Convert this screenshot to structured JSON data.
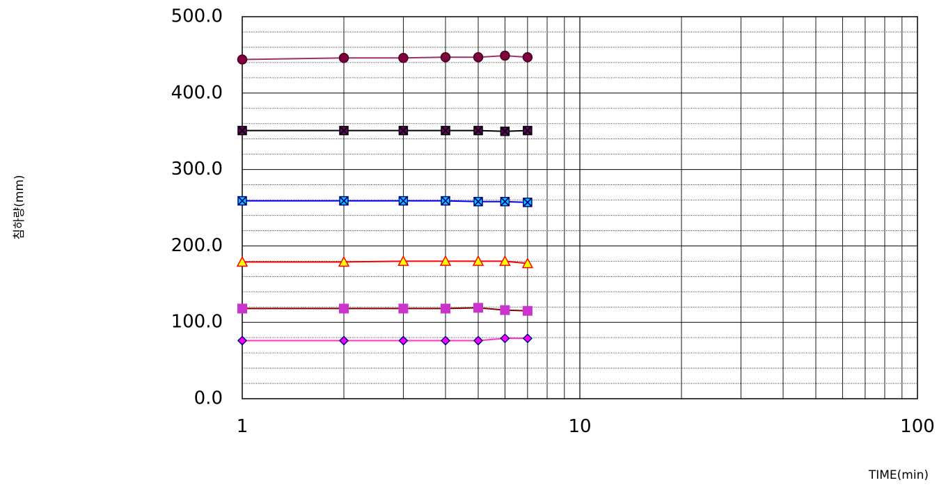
{
  "chart_data": {
    "type": "line",
    "title": "",
    "xlabel": "TIME(min)",
    "ylabel": "침하량(mm)",
    "xscale": "log",
    "xlim": [
      1,
      100
    ],
    "ylim": [
      0,
      500
    ],
    "x_ticks": [
      "1",
      "10",
      "100"
    ],
    "y_ticks": [
      "0.0",
      "100.0",
      "200.0",
      "300.0",
      "400.0",
      "500.0"
    ],
    "grid": true,
    "legend": "none",
    "x": [
      1,
      2,
      3,
      4,
      5,
      6,
      7
    ],
    "series": [
      {
        "marker": "diamond",
        "line_color": "#ff33cc",
        "marker_fill": "#ff00ff",
        "marker_edge": "#000080",
        "values": [
          76,
          76,
          76,
          76,
          76,
          79,
          79
        ]
      },
      {
        "marker": "square",
        "line_color": "#800000",
        "marker_fill": "#cc33cc",
        "marker_edge": "#cc33cc",
        "values": [
          118,
          118,
          118,
          118,
          119,
          116,
          115
        ]
      },
      {
        "marker": "triangle",
        "line_color": "#ff0000",
        "marker_fill": "#ffff00",
        "marker_edge": "#ff0000",
        "values": [
          179,
          179,
          180,
          180,
          180,
          180,
          177
        ]
      },
      {
        "marker": "x-square",
        "line_color": "#0000ff",
        "marker_fill": "#00ccff",
        "marker_edge": "#000080",
        "values": [
          259,
          259,
          259,
          259,
          258,
          258,
          257
        ]
      },
      {
        "marker": "x-square",
        "line_color": "#000000",
        "marker_fill": "#660066",
        "marker_edge": "#000000",
        "values": [
          351,
          351,
          351,
          351,
          351,
          350,
          351
        ]
      },
      {
        "marker": "circle",
        "line_color": "#993366",
        "marker_fill": "#800040",
        "marker_edge": "#400020",
        "values": [
          444,
          446,
          446,
          447,
          447,
          449,
          447
        ]
      }
    ]
  }
}
